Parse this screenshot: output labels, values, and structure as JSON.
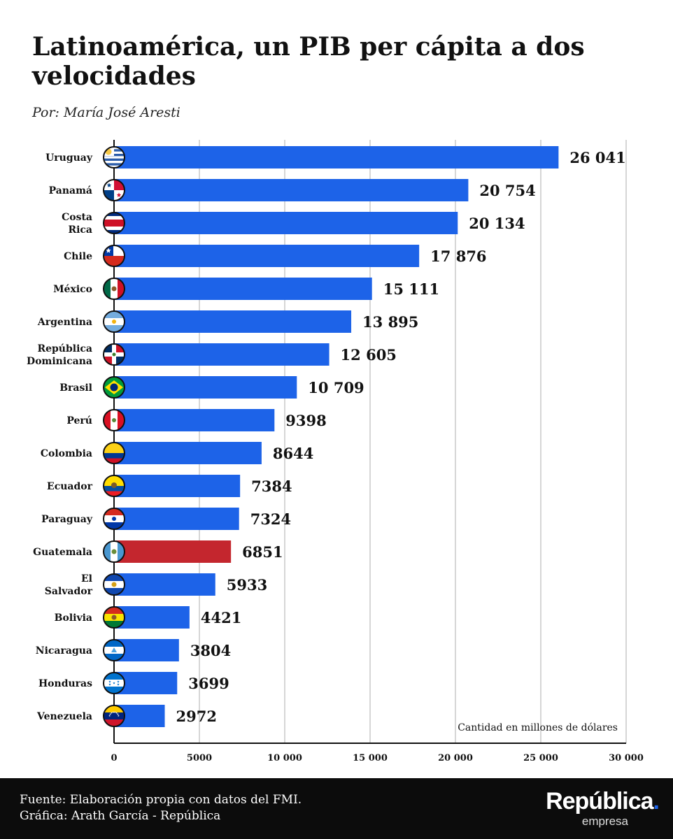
{
  "header": {
    "title": "Latinoamérica, un PIB per cápita a dos velocidades",
    "byline": "Por: María José Aresti"
  },
  "colors": {
    "bar": "#1d63e8",
    "highlight": "#c4262e",
    "grid": "#c8c8c8",
    "axis": "#111111",
    "text": "#111111"
  },
  "chart_data": {
    "type": "bar",
    "orientation": "horizontal",
    "categories": [
      "Uruguay",
      "Panamá",
      "Costa Rica",
      "Chile",
      "México",
      "Argentina",
      "República Dominicana",
      "Brasil",
      "Perú",
      "Colombia",
      "Ecuador",
      "Paraguay",
      "Guatemala",
      "El Salvador",
      "Bolivia",
      "Nicaragua",
      "Honduras",
      "Venezuela"
    ],
    "values": [
      26041,
      20754,
      20134,
      17876,
      15111,
      13895,
      12605,
      10709,
      9398,
      8644,
      7384,
      7324,
      6851,
      5933,
      4421,
      3804,
      3699,
      2972
    ],
    "value_labels": [
      "26 041",
      "20 754",
      "20 134",
      "17 876",
      "15 111",
      "13 895",
      "12 605",
      "10 709",
      "9398",
      "8644",
      "7384",
      "7324",
      "6851",
      "5933",
      "4421",
      "3804",
      "3699",
      "2972"
    ],
    "highlight": "Guatemala",
    "xlim": [
      0,
      30000
    ],
    "xticks": [
      0,
      5000,
      10000,
      15000,
      20000,
      25000,
      30000
    ],
    "xtick_labels": [
      "0",
      "5000",
      "10 000",
      "15 000",
      "20 000",
      "25 000",
      "30 000"
    ],
    "unit_note": "Cantidad en millones de dólares",
    "grid": true,
    "flag_icons": [
      "uruguay-flag-icon",
      "panama-flag-icon",
      "costa-rica-flag-icon",
      "chile-flag-icon",
      "mexico-flag-icon",
      "argentina-flag-icon",
      "dominican-republic-flag-icon",
      "brazil-flag-icon",
      "peru-flag-icon",
      "colombia-flag-icon",
      "ecuador-flag-icon",
      "paraguay-flag-icon",
      "guatemala-flag-icon",
      "el-salvador-flag-icon",
      "bolivia-flag-icon",
      "nicaragua-flag-icon",
      "honduras-flag-icon",
      "venezuela-flag-icon"
    ]
  },
  "footer": {
    "source_line": "Fuente: Elaboración propia con datos del FMI.",
    "credit_line": "Gráfica: Arath García - República",
    "logo_name": "República",
    "logo_dot": ".",
    "logo_sub": "empresa"
  }
}
